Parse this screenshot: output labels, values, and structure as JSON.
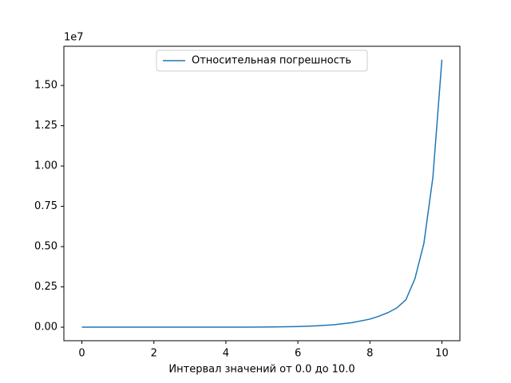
{
  "chart_data": {
    "type": "line",
    "xlabel": "Интервал значений от 0.0 до 10.0",
    "y_offset_label": "1e7",
    "legend_loc": "upper center",
    "x": [
      0,
      0.5,
      1,
      1.5,
      2,
      2.5,
      3,
      3.5,
      4,
      4.5,
      5,
      5.5,
      6,
      6.5,
      7,
      7.5,
      8,
      8.25,
      8.5,
      8.75,
      9,
      9.25,
      9.5,
      9.75,
      10
    ],
    "series": [
      {
        "name": "Относительная погрешность",
        "color": "#1f77b4",
        "values": [
          0,
          0,
          0,
          0,
          0,
          0,
          0,
          500,
          2000,
          4000,
          8000,
          20000,
          40000,
          80000,
          150000,
          280000,
          500000,
          680000,
          900000,
          1200000,
          1700000,
          3000000,
          5200000,
          9300000,
          16600000
        ]
      }
    ],
    "xlim": [
      -0.5,
      10.5
    ],
    "xticks": [
      0,
      2,
      4,
      6,
      8,
      10
    ],
    "ylim": [
      -840000,
      17430000
    ],
    "yticks": [
      {
        "value": 0,
        "label": "0.00"
      },
      {
        "value": 2500000,
        "label": "0.25"
      },
      {
        "value": 5000000,
        "label": "0.50"
      },
      {
        "value": 7500000,
        "label": "0.75"
      },
      {
        "value": 10000000,
        "label": "1.00"
      },
      {
        "value": 12500000,
        "label": "1.25"
      },
      {
        "value": 15000000,
        "label": "1.50"
      }
    ],
    "grid": false
  }
}
